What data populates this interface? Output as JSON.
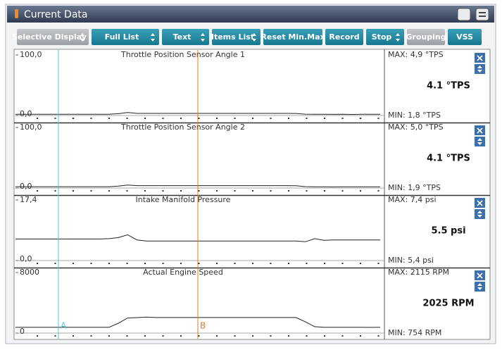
{
  "header": {
    "title": "Current Data"
  },
  "toolbar": [
    "Selective Display",
    "Full List",
    "Text",
    "Items List",
    "Reset Min.Max",
    "Record",
    "Stop",
    "Grouping",
    "VSS"
  ],
  "cursors": [
    "A",
    "B"
  ],
  "graphs": [
    {
      "title": "Throttle Position Sensor Angle 1",
      "ylim": [
        0,
        100
      ],
      "yticks": [
        {
          "value": 0,
          "label": "0,0"
        },
        {
          "value": 100,
          "label": "100,0"
        }
      ],
      "max": "MAX:  4,9 °TPS",
      "current": "4.1 °TPS",
      "min": "MIN:  1,8 °TPS",
      "values": [
        2,
        2,
        2,
        2,
        2,
        2,
        2,
        2,
        2,
        2,
        2,
        3,
        4.9,
        3.5,
        3.5,
        3.5,
        3.5,
        3.5,
        3.5,
        3.5,
        3.5,
        3.5,
        3.5,
        3.5,
        3.5,
        3.5,
        3.5,
        3.5,
        3.5,
        3.5,
        3.4,
        2.2,
        2,
        2,
        1.9,
        2,
        1.8,
        2,
        2,
        2
      ]
    },
    {
      "title": "Throttle Position Sensor Angle 2",
      "ylim": [
        0,
        100
      ],
      "yticks": [
        {
          "value": 0,
          "label": "0,0"
        },
        {
          "value": 100,
          "label": "100,0"
        }
      ],
      "max": "MAX:  5,0 °TPS",
      "current": "4.1 °TPS",
      "min": "MIN:  1,9 °TPS",
      "values": [
        2.2,
        2.2,
        2.2,
        2.2,
        2.2,
        2.2,
        2.2,
        2.2,
        2.2,
        2.2,
        2.2,
        3.2,
        5,
        4,
        4,
        4,
        4,
        4,
        4,
        4,
        4,
        4,
        4,
        4,
        4,
        4,
        4,
        4,
        4,
        4,
        3.8,
        2.3,
        2.1,
        2.1,
        1.9,
        2.1,
        2,
        2.1,
        2.1,
        2.1
      ]
    },
    {
      "title": "Intake Manifold Pressure",
      "ylim": [
        0,
        17.4
      ],
      "yticks": [
        {
          "value": 0,
          "label": "0,0"
        },
        {
          "value": 17.4,
          "label": "17,4"
        }
      ],
      "max": "MAX:  7,4 psi",
      "current": "5.5 psi",
      "min": "MIN:  5,4 psi",
      "values": [
        6.2,
        6.2,
        6.2,
        6.2,
        6.2,
        6.2,
        6.2,
        6.2,
        6.2,
        6.2,
        6.3,
        6.6,
        7.4,
        5.9,
        5.6,
        5.6,
        5.6,
        5.6,
        5.6,
        5.6,
        5.6,
        5.6,
        5.6,
        5.6,
        5.6,
        5.6,
        5.6,
        5.6,
        5.6,
        5.6,
        5.6,
        5.4,
        6.3,
        5.8,
        5.9,
        5.9,
        5.9,
        5.9,
        5.9,
        5.9
      ]
    },
    {
      "title": "Actual Engine Speed",
      "ylim": [
        0,
        8000
      ],
      "yticks": [
        0,
        8000
      ],
      "max": "MAX:  2115 RPM",
      "current": "2025 RPM",
      "min": "MIN:  754 RPM",
      "values": [
        760,
        760,
        760,
        760,
        760,
        760,
        760,
        760,
        760,
        760,
        760,
        1300,
        2000,
        2050,
        2115,
        2060,
        2060,
        2060,
        2060,
        2060,
        2060,
        2060,
        2060,
        2060,
        2060,
        2060,
        2060,
        2060,
        2060,
        2060,
        2060,
        1500,
        850,
        760,
        760,
        760,
        760,
        760,
        754,
        760
      ]
    }
  ]
}
